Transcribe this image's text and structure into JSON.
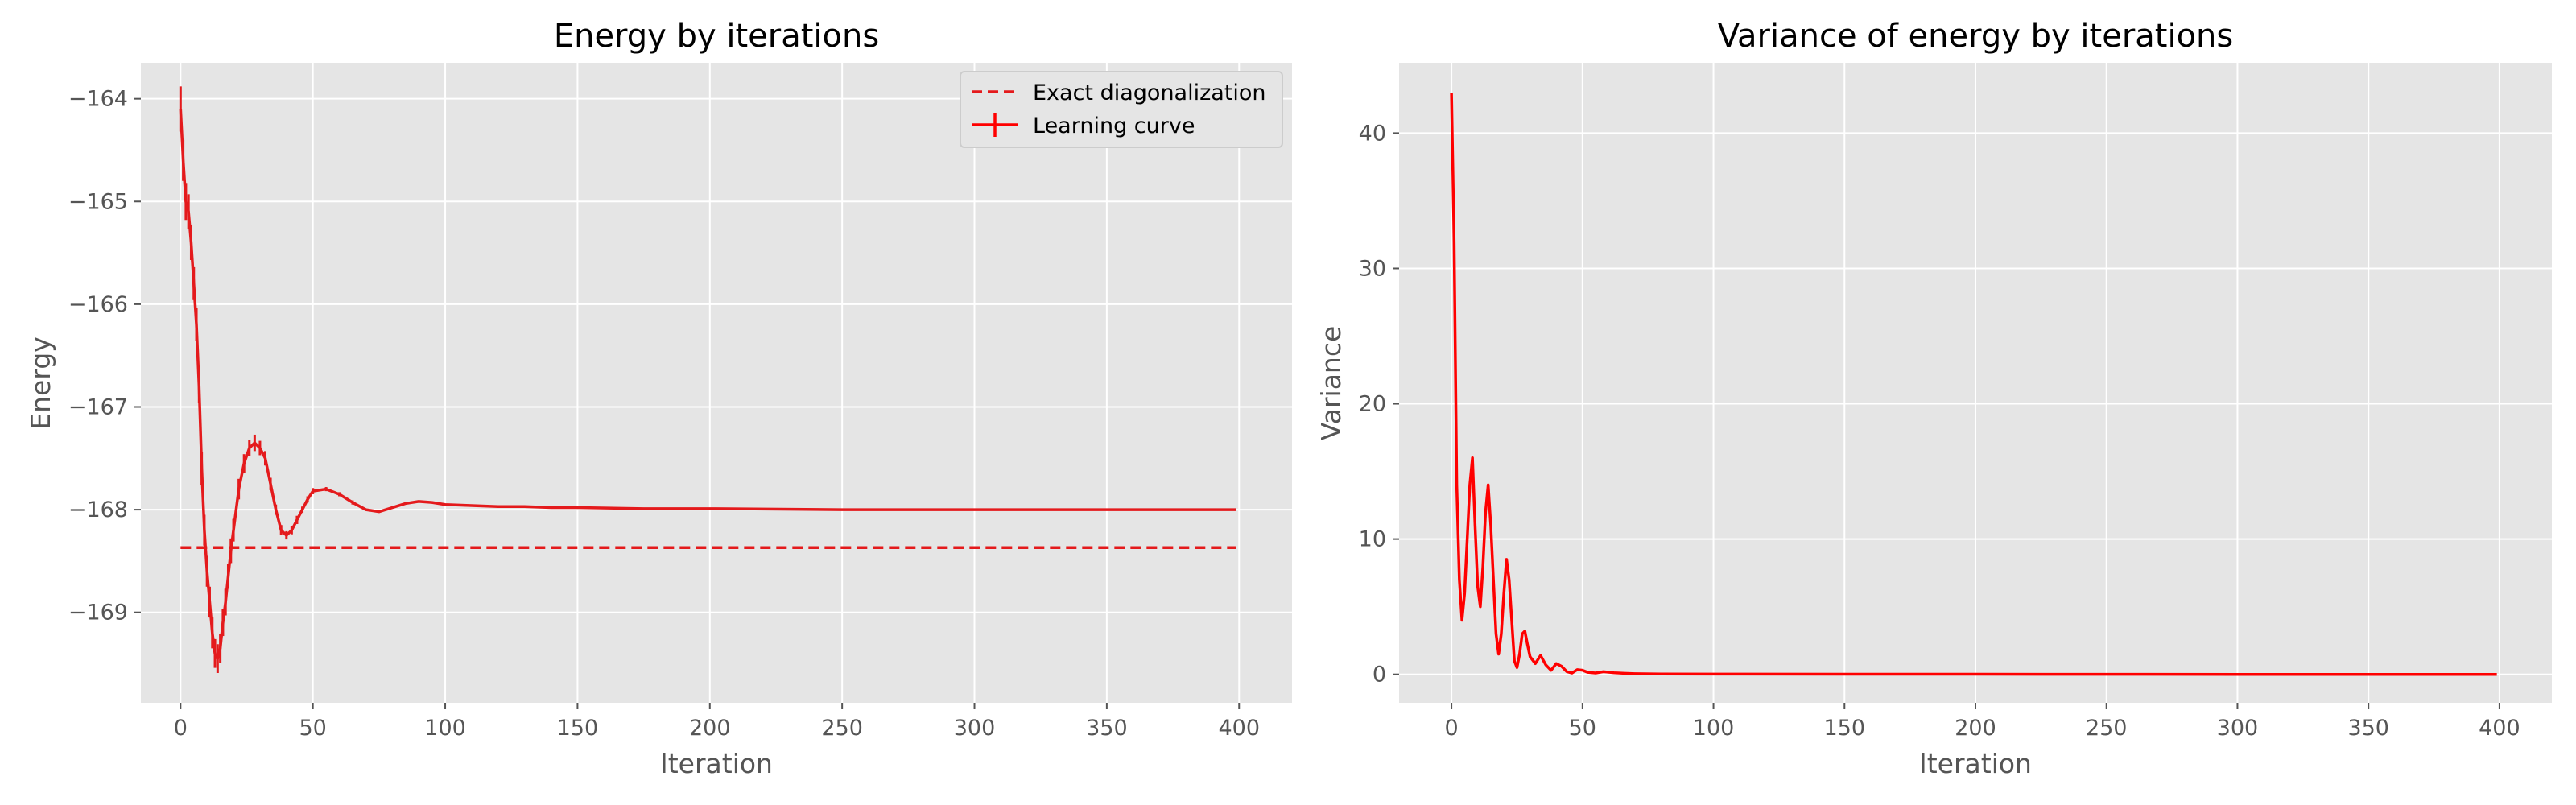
{
  "chart_data": [
    {
      "type": "line",
      "title": "Energy by iterations",
      "xlabel": "Iteration",
      "ylabel": "Energy",
      "xlim": [
        -15,
        420
      ],
      "ylim": [
        -169.88,
        -163.65
      ],
      "xticks": [
        0,
        50,
        100,
        150,
        200,
        250,
        300,
        350,
        400
      ],
      "yticks": [
        -169,
        -168,
        -167,
        -166,
        -165,
        -164
      ],
      "grid": true,
      "legend_position": "top-right",
      "series": [
        {
          "name": "Exact diagonalization",
          "style": "dashed",
          "color": "#e41a1c",
          "x": [
            0,
            399
          ],
          "y": [
            -168.37,
            -168.37
          ]
        },
        {
          "name": "Learning curve",
          "style": "solid-errorbar",
          "color": "#e41a1c",
          "x": [
            0,
            1,
            2,
            3,
            4,
            5,
            6,
            7,
            8,
            9,
            10,
            11,
            12,
            13,
            14,
            15,
            16,
            17,
            18,
            19,
            20,
            22,
            24,
            26,
            28,
            30,
            32,
            34,
            36,
            38,
            40,
            42,
            44,
            46,
            48,
            50,
            55,
            60,
            65,
            70,
            75,
            80,
            85,
            90,
            95,
            100,
            110,
            120,
            130,
            140,
            150,
            175,
            200,
            250,
            300,
            350,
            399
          ],
          "y": [
            -164.1,
            -164.6,
            -165.0,
            -165.1,
            -165.4,
            -165.8,
            -166.2,
            -166.8,
            -167.6,
            -168.2,
            -168.6,
            -168.9,
            -169.2,
            -169.4,
            -169.45,
            -169.35,
            -169.1,
            -168.9,
            -168.65,
            -168.4,
            -168.2,
            -167.8,
            -167.55,
            -167.4,
            -167.35,
            -167.4,
            -167.5,
            -167.75,
            -168.0,
            -168.2,
            -168.25,
            -168.2,
            -168.1,
            -168.0,
            -167.9,
            -167.82,
            -167.8,
            -167.85,
            -167.93,
            -168.0,
            -168.02,
            -167.98,
            -167.94,
            -167.92,
            -167.93,
            -167.95,
            -167.96,
            -167.97,
            -167.97,
            -167.98,
            -167.98,
            -167.99,
            -167.99,
            -168.0,
            -168.0,
            -168.0,
            -168.0
          ],
          "yerr": [
            0.22,
            0.2,
            0.18,
            0.17,
            0.17,
            0.16,
            0.16,
            0.16,
            0.16,
            0.15,
            0.15,
            0.15,
            0.15,
            0.14,
            0.14,
            0.14,
            0.13,
            0.13,
            0.12,
            0.12,
            0.11,
            0.1,
            0.09,
            0.08,
            0.08,
            0.07,
            0.07,
            0.06,
            0.05,
            0.05,
            0.04,
            0.04,
            0.04,
            0.03,
            0.03,
            0.03,
            0.02,
            0.02,
            0.02,
            0.01,
            0.01,
            0.01,
            0.01,
            0.01,
            0.01,
            0.01,
            0.0,
            0.0,
            0.0,
            0.0,
            0.0,
            0.0,
            0.0,
            0.0,
            0.0,
            0.0,
            0.0
          ]
        }
      ]
    },
    {
      "type": "line",
      "title": "Variance of energy by iterations",
      "xlabel": "Iteration",
      "ylabel": "Variance",
      "xlim": [
        -20,
        420
      ],
      "ylim": [
        -2.1,
        45.2
      ],
      "xticks": [
        0,
        50,
        100,
        150,
        200,
        250,
        300,
        350,
        400
      ],
      "yticks": [
        0,
        10,
        20,
        30,
        40
      ],
      "grid": true,
      "series": [
        {
          "name": "",
          "style": "solid",
          "color": "#ff0000",
          "x": [
            0,
            1,
            2,
            3,
            4,
            5,
            6,
            7,
            8,
            9,
            10,
            11,
            12,
            13,
            14,
            15,
            16,
            17,
            18,
            19,
            20,
            21,
            22,
            23,
            24,
            25,
            26,
            27,
            28,
            29,
            30,
            32,
            34,
            36,
            38,
            40,
            42,
            44,
            46,
            48,
            50,
            52,
            55,
            58,
            62,
            66,
            70,
            80,
            100,
            150,
            200,
            300,
            399
          ],
          "y": [
            43.0,
            32.0,
            14.0,
            7.0,
            4.0,
            6.0,
            10.0,
            14.0,
            16.0,
            11.0,
            6.5,
            5.0,
            8.0,
            12.0,
            14.0,
            11.0,
            7.0,
            3.0,
            1.5,
            3.0,
            6.0,
            8.5,
            7.0,
            4.0,
            1.0,
            0.5,
            1.5,
            3.0,
            3.2,
            2.2,
            1.3,
            0.8,
            1.4,
            0.7,
            0.3,
            0.8,
            0.6,
            0.2,
            0.1,
            0.35,
            0.3,
            0.15,
            0.1,
            0.2,
            0.12,
            0.08,
            0.05,
            0.03,
            0.02,
            0.01,
            0.01,
            0.0,
            0.0
          ]
        }
      ]
    }
  ]
}
